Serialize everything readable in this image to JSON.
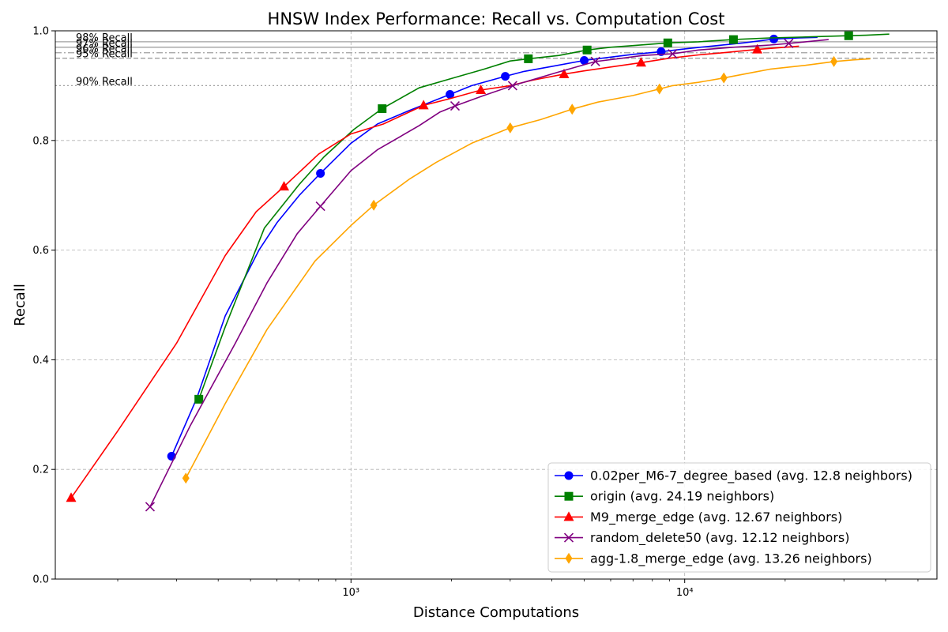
{
  "chart_data": {
    "type": "line",
    "title": "HNSW Index Performance: Recall vs. Computation Cost",
    "xlabel": "Distance Computations",
    "ylabel": "Recall",
    "x_scale": "log",
    "xlim": [
      130,
      57000
    ],
    "ylim": [
      0.0,
      1.0
    ],
    "x_ticks": [
      1000,
      10000
    ],
    "x_tick_labels": [
      "10³",
      "10⁴"
    ],
    "y_ticks": [
      0.0,
      0.2,
      0.4,
      0.6,
      0.8,
      1.0
    ],
    "y_tick_labels": [
      "0.0",
      "0.2",
      "0.4",
      "0.6",
      "0.8",
      "1.0"
    ],
    "grid": true,
    "legend_position": "lower-right",
    "reference_lines": [
      {
        "label": "98% Recall",
        "y": 0.98,
        "style": "solid",
        "color": "#a0a0a0"
      },
      {
        "label": "97% Recall",
        "y": 0.97,
        "style": "solid",
        "color": "#a0a0a0"
      },
      {
        "label": "96% Recall",
        "y": 0.96,
        "style": "dashdot",
        "color": "#a0a0a0"
      },
      {
        "label": "95% Recall",
        "y": 0.95,
        "style": "dashed",
        "color": "#a0a0a0"
      },
      {
        "label": "90% Recall",
        "y": 0.9,
        "style": "dotted",
        "color": "#a0a0a0"
      }
    ],
    "series": [
      {
        "name": "0.02per_M6-7_degree_based (avg. 12.8 neighbors)",
        "color": "#0000ff",
        "marker": "circle",
        "x": [
          290,
          345,
          420,
          530,
          600,
          700,
          810,
          1000,
          1200,
          1500,
          1980,
          2300,
          2900,
          3300,
          4000,
          5000,
          6000,
          7000,
          8500,
          10000,
          12000,
          15000,
          18500,
          22000,
          25000
        ],
        "y": [
          0.224,
          0.33,
          0.48,
          0.6,
          0.65,
          0.7,
          0.74,
          0.795,
          0.83,
          0.855,
          0.884,
          0.9,
          0.917,
          0.926,
          0.935,
          0.946,
          0.952,
          0.957,
          0.962,
          0.967,
          0.972,
          0.978,
          0.985,
          0.987,
          0.988
        ],
        "marker_idx": [
          0,
          6,
          10,
          12,
          15,
          18,
          22
        ]
      },
      {
        "name": "origin (avg. 24.19 neighbors)",
        "color": "#008000",
        "marker": "square",
        "x": [
          350,
          420,
          550,
          700,
          830,
          1020,
          1240,
          1600,
          2000,
          2500,
          3000,
          3400,
          4200,
          5100,
          6000,
          7000,
          8900,
          11000,
          14000,
          18000,
          24000,
          31000,
          35000,
          41000
        ],
        "y": [
          0.328,
          0.46,
          0.64,
          0.72,
          0.77,
          0.82,
          0.858,
          0.896,
          0.913,
          0.93,
          0.945,
          0.949,
          0.955,
          0.965,
          0.97,
          0.973,
          0.978,
          0.98,
          0.984,
          0.987,
          0.989,
          0.991,
          0.992,
          0.994
        ],
        "marker_idx": [
          0,
          6,
          11,
          13,
          16,
          18,
          21
        ]
      },
      {
        "name": "M9_merge_edge (avg. 12.67 neighbors)",
        "color": "#ff0000",
        "marker": "triangle",
        "x": [
          145,
          200,
          300,
          420,
          520,
          630,
          800,
          1000,
          1250,
          1650,
          2000,
          2450,
          3000,
          3500,
          4350,
          5000,
          6000,
          7400,
          9000,
          11000,
          13000,
          16500,
          22000
        ],
        "y": [
          0.148,
          0.27,
          0.43,
          0.59,
          0.67,
          0.716,
          0.775,
          0.812,
          0.83,
          0.864,
          0.877,
          0.892,
          0.9,
          0.91,
          0.921,
          0.927,
          0.934,
          0.942,
          0.95,
          0.956,
          0.96,
          0.966,
          0.972
        ],
        "marker_idx": [
          0,
          5,
          9,
          11,
          14,
          17,
          21
        ]
      },
      {
        "name": "random_delete50 (avg. 12.12 neighbors)",
        "color": "#800080",
        "marker": "x",
        "x": [
          250,
          330,
          450,
          560,
          690,
          810,
          1000,
          1200,
          1600,
          1850,
          2050,
          2500,
          3050,
          3600,
          4200,
          5400,
          6500,
          7500,
          9200,
          11000,
          14000,
          18000,
          20500,
          24000,
          27000
        ],
        "y": [
          0.132,
          0.28,
          0.43,
          0.54,
          0.63,
          0.68,
          0.745,
          0.783,
          0.827,
          0.852,
          0.863,
          0.882,
          0.9,
          0.913,
          0.925,
          0.944,
          0.95,
          0.955,
          0.958,
          0.965,
          0.97,
          0.974,
          0.977,
          0.981,
          0.984
        ],
        "marker_idx": [
          0,
          5,
          10,
          12,
          15,
          18,
          22
        ]
      },
      {
        "name": "agg-1.8_merge_edge (avg. 13.26 neighbors)",
        "color": "#ffa500",
        "marker": "diamond",
        "x": [
          320,
          420,
          560,
          780,
          1000,
          1170,
          1500,
          1800,
          2300,
          3000,
          3700,
          4600,
          5500,
          7000,
          8400,
          9200,
          11000,
          13100,
          16000,
          18000,
          23000,
          28000,
          32000,
          36000
        ],
        "y": [
          0.184,
          0.32,
          0.455,
          0.58,
          0.645,
          0.682,
          0.73,
          0.76,
          0.795,
          0.823,
          0.838,
          0.857,
          0.87,
          0.882,
          0.894,
          0.9,
          0.906,
          0.914,
          0.924,
          0.93,
          0.937,
          0.944,
          0.947,
          0.949
        ],
        "marker_idx": [
          0,
          5,
          9,
          11,
          14,
          17,
          21
        ]
      }
    ]
  }
}
